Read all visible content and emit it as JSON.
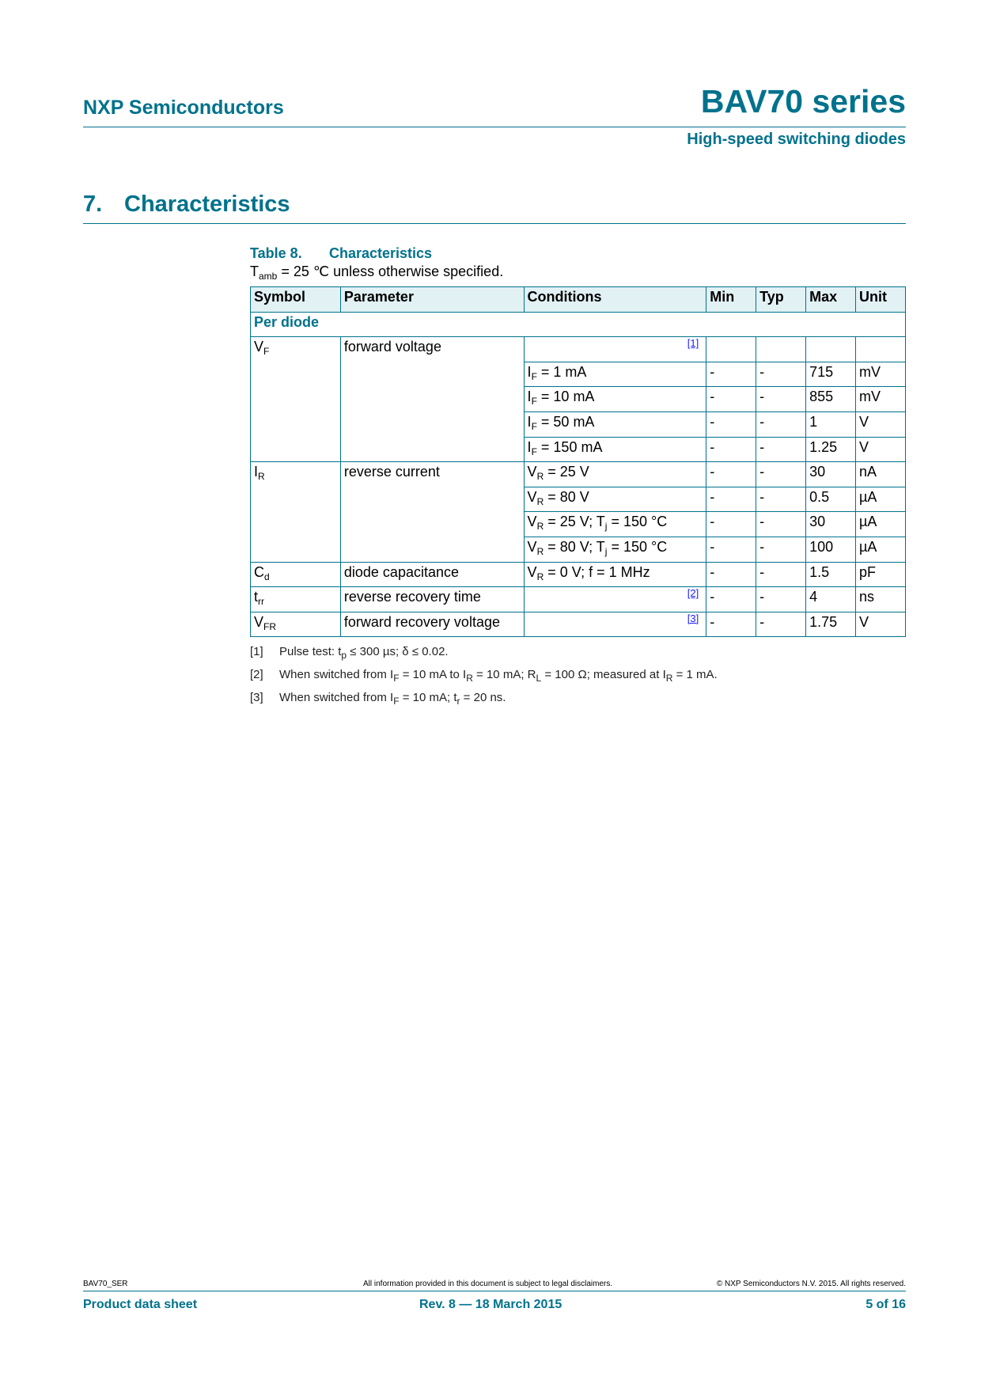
{
  "header": {
    "company": "NXP Semiconductors",
    "title": "BAV70 series",
    "subtitle": "High-speed switching diodes"
  },
  "section": {
    "number": "7.",
    "title": "Characteristics"
  },
  "table": {
    "label": "Table 8.",
    "caption": "Characteristics",
    "condition": [
      {
        "t": "T"
      },
      {
        "sub": "amb"
      },
      {
        "t": " = 25 ℃ unless otherwise specified."
      }
    ],
    "columns": [
      "Symbol",
      "Parameter",
      "Conditions",
      "Min",
      "Typ",
      "Max",
      "Unit"
    ],
    "group": "Per diode",
    "params": [
      {
        "symbol": [
          {
            "t": "V"
          },
          {
            "sub": "F"
          }
        ],
        "parameter": "forward voltage",
        "rows": [
          {
            "cond": [],
            "ref": "[1]",
            "min": "",
            "typ": "",
            "max": "",
            "unit": ""
          },
          {
            "cond": [
              {
                "t": "I"
              },
              {
                "sub": "F"
              },
              {
                "t": " = 1 mA"
              }
            ],
            "min": "-",
            "typ": "-",
            "max": "715",
            "unit": "mV"
          },
          {
            "cond": [
              {
                "t": "I"
              },
              {
                "sub": "F"
              },
              {
                "t": " = 10 mA"
              }
            ],
            "min": "-",
            "typ": "-",
            "max": "855",
            "unit": "mV"
          },
          {
            "cond": [
              {
                "t": "I"
              },
              {
                "sub": "F"
              },
              {
                "t": " = 50 mA"
              }
            ],
            "min": "-",
            "typ": "-",
            "max": "1",
            "unit": "V"
          },
          {
            "cond": [
              {
                "t": "I"
              },
              {
                "sub": "F"
              },
              {
                "t": " = 150 mA"
              }
            ],
            "min": "-",
            "typ": "-",
            "max": "1.25",
            "unit": "V"
          }
        ]
      },
      {
        "symbol": [
          {
            "t": "I"
          },
          {
            "sub": "R"
          }
        ],
        "parameter": "reverse current",
        "rows": [
          {
            "cond": [
              {
                "t": "V"
              },
              {
                "sub": "R"
              },
              {
                "t": " = 25 V"
              }
            ],
            "min": "-",
            "typ": "-",
            "max": "30",
            "unit": "nA"
          },
          {
            "cond": [
              {
                "t": "V"
              },
              {
                "sub": "R"
              },
              {
                "t": " = 80 V"
              }
            ],
            "min": "-",
            "typ": "-",
            "max": "0.5",
            "unit": "µA"
          },
          {
            "cond": [
              {
                "t": "V"
              },
              {
                "sub": "R"
              },
              {
                "t": " = 25 V; T"
              },
              {
                "sub": "j"
              },
              {
                "t": " = 150 °C"
              }
            ],
            "min": "-",
            "typ": "-",
            "max": "30",
            "unit": "µA"
          },
          {
            "cond": [
              {
                "t": "V"
              },
              {
                "sub": "R"
              },
              {
                "t": " = 80 V; T"
              },
              {
                "sub": "j"
              },
              {
                "t": " = 150 °C"
              }
            ],
            "min": "-",
            "typ": "-",
            "max": "100",
            "unit": "µA"
          }
        ]
      },
      {
        "symbol": [
          {
            "t": "C"
          },
          {
            "sub": "d"
          }
        ],
        "parameter": "diode capacitance",
        "rows": [
          {
            "cond": [
              {
                "t": "V"
              },
              {
                "sub": "R"
              },
              {
                "t": " = 0 V; f = 1 MHz"
              }
            ],
            "min": "-",
            "typ": "-",
            "max": "1.5",
            "unit": "pF"
          }
        ]
      },
      {
        "symbol": [
          {
            "t": "t"
          },
          {
            "sub": "rr"
          }
        ],
        "parameter": "reverse recovery time",
        "rows": [
          {
            "cond": [],
            "ref": "[2]",
            "min": "-",
            "typ": "-",
            "max": "4",
            "unit": "ns"
          }
        ]
      },
      {
        "symbol": [
          {
            "t": "V"
          },
          {
            "sub": "FR"
          }
        ],
        "parameter": "forward recovery voltage",
        "rows": [
          {
            "cond": [],
            "ref": "[3]",
            "min": "-",
            "typ": "-",
            "max": "1.75",
            "unit": "V"
          }
        ]
      }
    ]
  },
  "notes": [
    {
      "n": "[1]",
      "text": [
        {
          "t": "Pulse test: t"
        },
        {
          "sub": "p"
        },
        {
          "t": " ≤ 300 µs; δ ≤ 0.02."
        }
      ]
    },
    {
      "n": "[2]",
      "text": [
        {
          "t": "When switched from I"
        },
        {
          "sub": "F"
        },
        {
          "t": " = 10 mA to I"
        },
        {
          "sub": "R"
        },
        {
          "t": " = 10 mA; R"
        },
        {
          "sub": "L"
        },
        {
          "t": " = 100 Ω; measured at I"
        },
        {
          "sub": "R"
        },
        {
          "t": " = 1 mA."
        }
      ]
    },
    {
      "n": "[3]",
      "text": [
        {
          "t": "When switched from I"
        },
        {
          "sub": "F"
        },
        {
          "t": " = 10 mA; t"
        },
        {
          "sub": "r"
        },
        {
          "t": " = 20 ns."
        }
      ]
    }
  ],
  "footer": {
    "doc_id": "BAV70_SER",
    "disclaimer": "All information provided in this document is subject to legal disclaimers.",
    "copyright": "© NXP Semiconductors N.V. 2015. All rights reserved.",
    "doc_type": "Product data sheet",
    "revision": "Rev. 8 — 18 March 2015",
    "page": "5 of 16"
  },
  "colors": {
    "accent": "#00728c",
    "header_fill": "#e2f1f4"
  }
}
